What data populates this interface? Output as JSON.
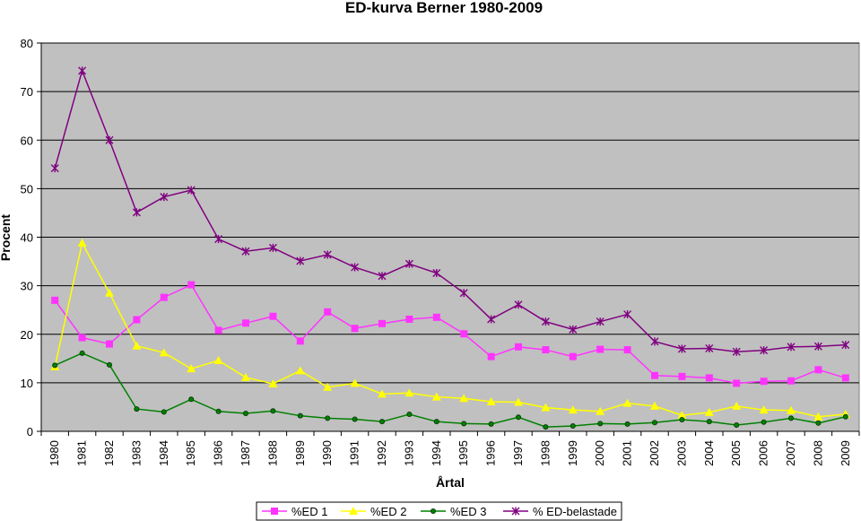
{
  "chart_data": {
    "type": "line",
    "title": "ED-kurva Berner 1980-2009",
    "xlabel": "Årtal",
    "ylabel": "Procent",
    "ylim": [
      0,
      80
    ],
    "yticks": [
      0,
      10,
      20,
      30,
      40,
      50,
      60,
      70,
      80
    ],
    "grid": true,
    "legend_position": "bottom",
    "plot_background": "#c0c0c0",
    "categories": [
      "1980",
      "1981",
      "1982",
      "1983",
      "1984",
      "1985",
      "1986",
      "1987",
      "1988",
      "1989",
      "1990",
      "1991",
      "1992",
      "1993",
      "1994",
      "1995",
      "1996",
      "1997",
      "1998",
      "1999",
      "2000",
      "2001",
      "2002",
      "2003",
      "2004",
      "2005",
      "2006",
      "2007",
      "2008",
      "2009"
    ],
    "series": [
      {
        "name": "%ED 1",
        "color": "#ff33ff",
        "marker": "square",
        "values": [
          27,
          19.3,
          18,
          23,
          27.6,
          30.2,
          20.8,
          22.3,
          23.7,
          18.6,
          24.6,
          21.2,
          22.2,
          23.1,
          23.5,
          20.1,
          15.4,
          17.4,
          16.8,
          15.4,
          16.9,
          16.8,
          11.5,
          11.3,
          11,
          9.9,
          10.3,
          10.4,
          12.7,
          11
        ]
      },
      {
        "name": "%ED 2",
        "color": "#ffff00",
        "marker": "triangle",
        "values": [
          13.3,
          38.8,
          28.5,
          17.6,
          16.2,
          12.9,
          14.6,
          11.1,
          9.8,
          12.5,
          9.1,
          9.9,
          7.7,
          7.9,
          7.1,
          6.8,
          6.1,
          6,
          4.9,
          4.4,
          4.1,
          5.8,
          5.2,
          3.3,
          3.9,
          5.2,
          4.4,
          4.3,
          3,
          3.5
        ]
      },
      {
        "name": "%ED 3",
        "color": "#008000",
        "marker": "circle",
        "values": [
          13.6,
          16.1,
          13.7,
          4.6,
          4,
          6.6,
          4.1,
          3.7,
          4.2,
          3.2,
          2.7,
          2.5,
          2,
          3.5,
          2,
          1.6,
          1.5,
          2.9,
          0.9,
          1.1,
          1.6,
          1.5,
          1.8,
          2.4,
          2,
          1.3,
          1.9,
          2.7,
          1.7,
          3
        ]
      },
      {
        "name": "% ED-belastade",
        "color": "#800080",
        "marker": "star",
        "values": [
          54.2,
          74.3,
          60,
          45.1,
          48.3,
          49.7,
          39.6,
          37.1,
          37.8,
          35.1,
          36.4,
          33.8,
          32,
          34.5,
          32.6,
          28.5,
          23.1,
          26.1,
          22.6,
          21,
          22.6,
          24.1,
          18.5,
          17,
          17.1,
          16.4,
          16.7,
          17.4,
          17.5,
          17.8
        ]
      }
    ]
  }
}
